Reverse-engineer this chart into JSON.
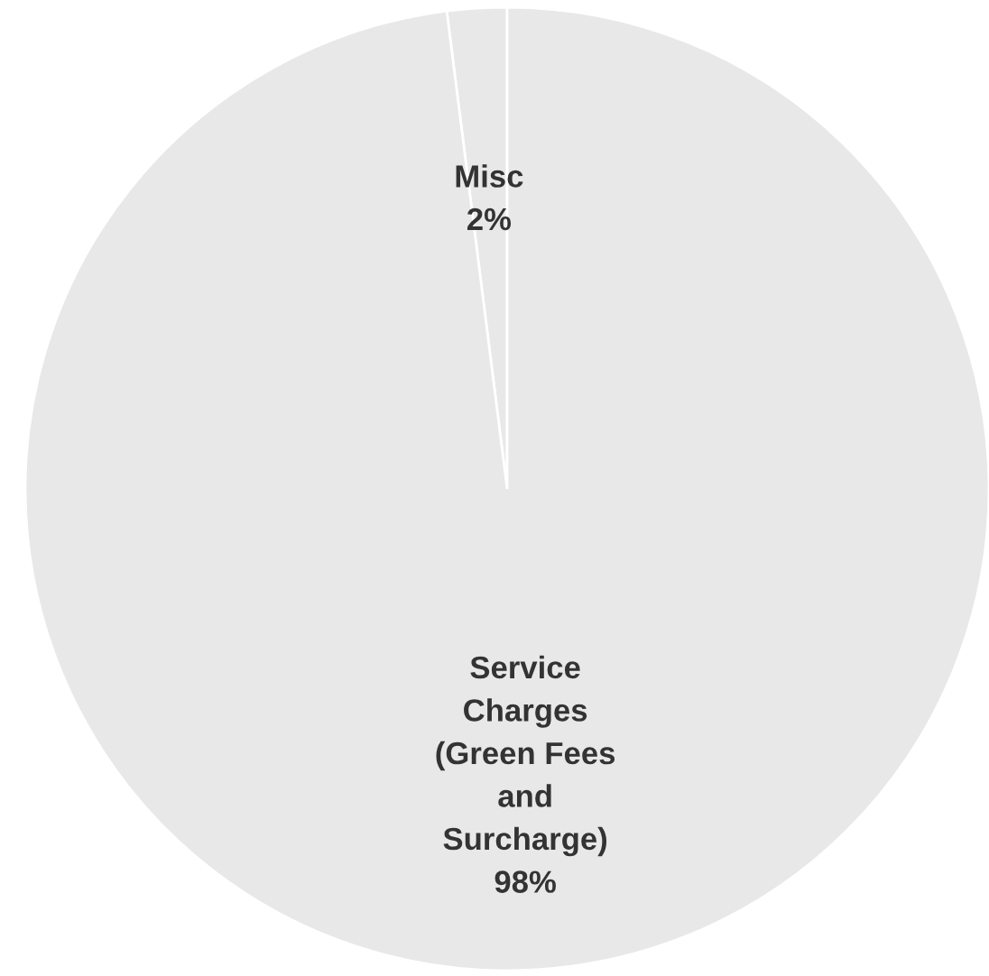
{
  "chart_data": {
    "type": "pie",
    "categories": [
      "Misc",
      "Service Charges (Green Fees and Surcharge)"
    ],
    "values": [
      2,
      98
    ],
    "colors": [
      "#e8e8e8",
      "#e8e8e8"
    ],
    "value_labels": [
      "2%",
      "98%"
    ]
  }
}
